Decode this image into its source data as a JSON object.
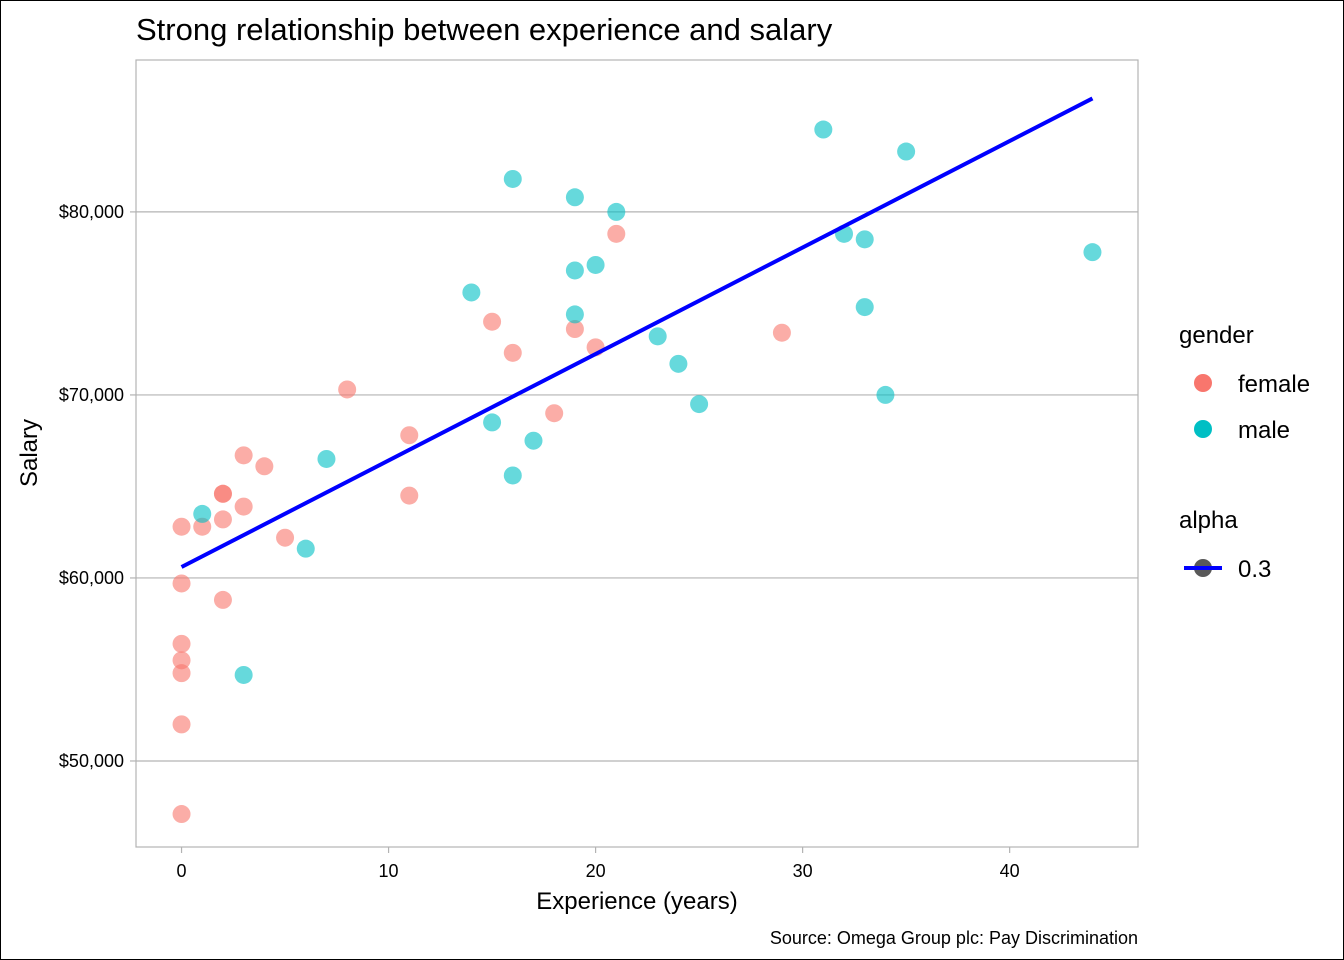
{
  "chart_data": {
    "type": "scatter",
    "title": "Strong relationship between experience and salary",
    "xlabel": "Experience (years)",
    "ylabel": "Salary",
    "caption": "Source: Omega Group plc: Pay Discrimination",
    "xlim": [
      -2.2,
      46.2
    ],
    "ylim": [
      45300,
      88300
    ],
    "x_ticks": [
      0,
      10,
      20,
      30,
      40
    ],
    "x_tick_labels": [
      "0",
      "10",
      "20",
      "30",
      "40"
    ],
    "y_ticks": [
      50000,
      60000,
      70000,
      80000
    ],
    "y_tick_labels": [
      "$50,000",
      "$60,000",
      "$70,000",
      "$80,000"
    ],
    "grid": "horizontal major",
    "point_alpha": 0.6,
    "series": [
      {
        "name": "female",
        "color": "#F8766D",
        "points": [
          [
            0,
            62800
          ],
          [
            0,
            59700
          ],
          [
            0,
            56400
          ],
          [
            0,
            55500
          ],
          [
            0,
            54800
          ],
          [
            0,
            52000
          ],
          [
            0,
            47100
          ],
          [
            1,
            62800
          ],
          [
            2,
            64600
          ],
          [
            2,
            64600
          ],
          [
            2,
            63200
          ],
          [
            2,
            58800
          ],
          [
            3,
            66700
          ],
          [
            3,
            63900
          ],
          [
            4,
            66100
          ],
          [
            5,
            62200
          ],
          [
            8,
            70300
          ],
          [
            11,
            67800
          ],
          [
            11,
            64500
          ],
          [
            15,
            74000
          ],
          [
            16,
            72300
          ],
          [
            18,
            69000
          ],
          [
            19,
            73600
          ],
          [
            20,
            72600
          ],
          [
            21,
            78800
          ],
          [
            29,
            73400
          ]
        ]
      },
      {
        "name": "male",
        "color": "#00BFC4",
        "points": [
          [
            1,
            63500
          ],
          [
            3,
            54700
          ],
          [
            6,
            61600
          ],
          [
            7,
            66500
          ],
          [
            14,
            75600
          ],
          [
            15,
            68500
          ],
          [
            16,
            81800
          ],
          [
            16,
            65600
          ],
          [
            17,
            67500
          ],
          [
            19,
            80800
          ],
          [
            19,
            76800
          ],
          [
            19,
            74400
          ],
          [
            20,
            77100
          ],
          [
            21,
            80000
          ],
          [
            23,
            73200
          ],
          [
            24,
            71700
          ],
          [
            25,
            69500
          ],
          [
            31,
            84500
          ],
          [
            32,
            78800
          ],
          [
            33,
            78500
          ],
          [
            33,
            74800
          ],
          [
            34,
            70000
          ],
          [
            35,
            83300
          ],
          [
            44,
            77800
          ]
        ]
      }
    ],
    "trend_line": {
      "x": [
        0,
        44
      ],
      "y": [
        60600,
        86200
      ],
      "color": "#0000FF"
    },
    "legend": {
      "position": "right",
      "gender_title": "gender",
      "gender_items": [
        {
          "label": "female",
          "color": "#F8766D"
        },
        {
          "label": "male",
          "color": "#00BFC4"
        }
      ],
      "alpha_title": "alpha",
      "alpha_items": [
        {
          "label": "0.3",
          "line_color": "#0000FF",
          "point_color": "#595959"
        }
      ]
    }
  }
}
